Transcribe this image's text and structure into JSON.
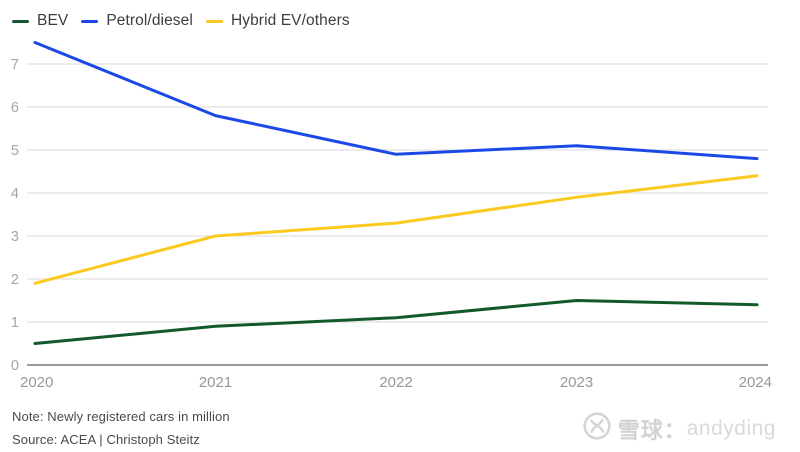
{
  "chart_data": {
    "type": "line",
    "x": [
      "2020",
      "2021",
      "2022",
      "2023",
      "2024"
    ],
    "series": [
      {
        "name": "BEV",
        "color": "#14592b",
        "values": [
          0.5,
          0.9,
          1.1,
          1.5,
          1.4
        ]
      },
      {
        "name": "Petrol/diesel",
        "color": "#1c49e6",
        "values": [
          7.5,
          5.8,
          4.9,
          5.1,
          4.8
        ]
      },
      {
        "name": "Hybrid EV/others",
        "color": "#fbc91f",
        "values": [
          1.9,
          3.0,
          3.3,
          3.9,
          4.4
        ]
      }
    ],
    "yticks": [
      0,
      1,
      2,
      3,
      4,
      5,
      6,
      7
    ],
    "ylim": [
      0,
      7.6
    ],
    "grid": true,
    "legend_position": "top-left",
    "grid_color": "#d9d9d9",
    "axis_color": "#9a9a9a",
    "ytick_color": "#a5a5a5",
    "xtick_color": "#979797"
  },
  "note": "Note: Newly registered cars in million",
  "source": "Source: ACEA | Christoph Steitz",
  "watermark": {
    "logo": "xueqiu-logo",
    "brand": "雪球：",
    "user": "andyding"
  }
}
